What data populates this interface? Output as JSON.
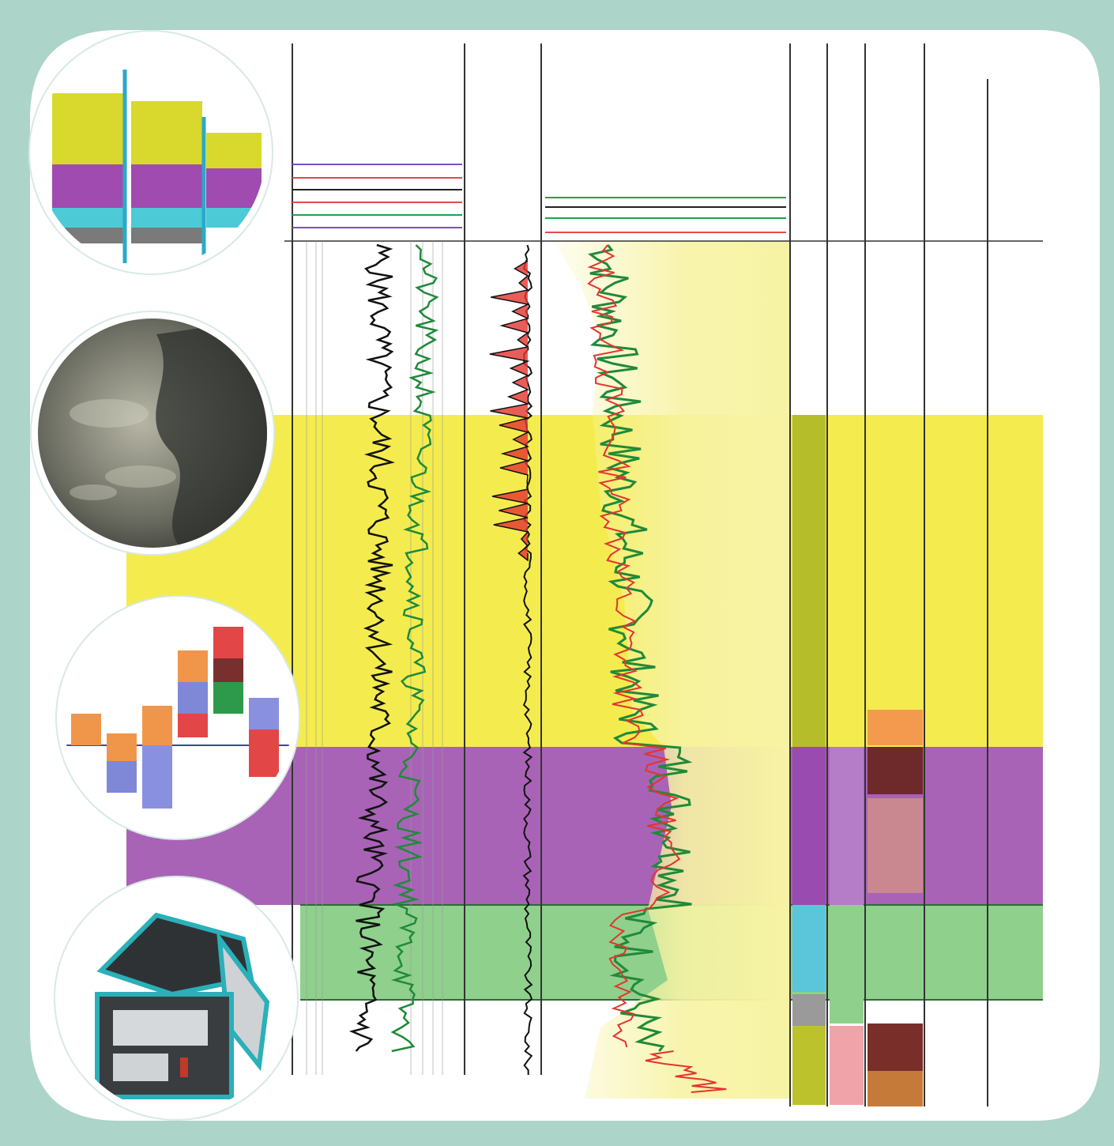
{
  "colors": {
    "frame": "#add4c9",
    "zone_yellow": "#f4ec4e",
    "zone_purple": "#a863b6",
    "zone_green": "#8fd08c",
    "pale_yellow": "#f7f3a4",
    "curve_green": "#1f8a3a",
    "curve_red": "#e3342f",
    "curve_black": "#111111",
    "curve_pink": "#e98aa6",
    "curve_cyan": "#7fd6e3"
  },
  "icons": {
    "circle_1": "stacked-column-chart-icon",
    "circle_2": "rock-core-photo-icon",
    "circle_3": "waterfall-bar-chart-icon",
    "circle_4": "xrf-analyzer-instrument-icon"
  }
}
